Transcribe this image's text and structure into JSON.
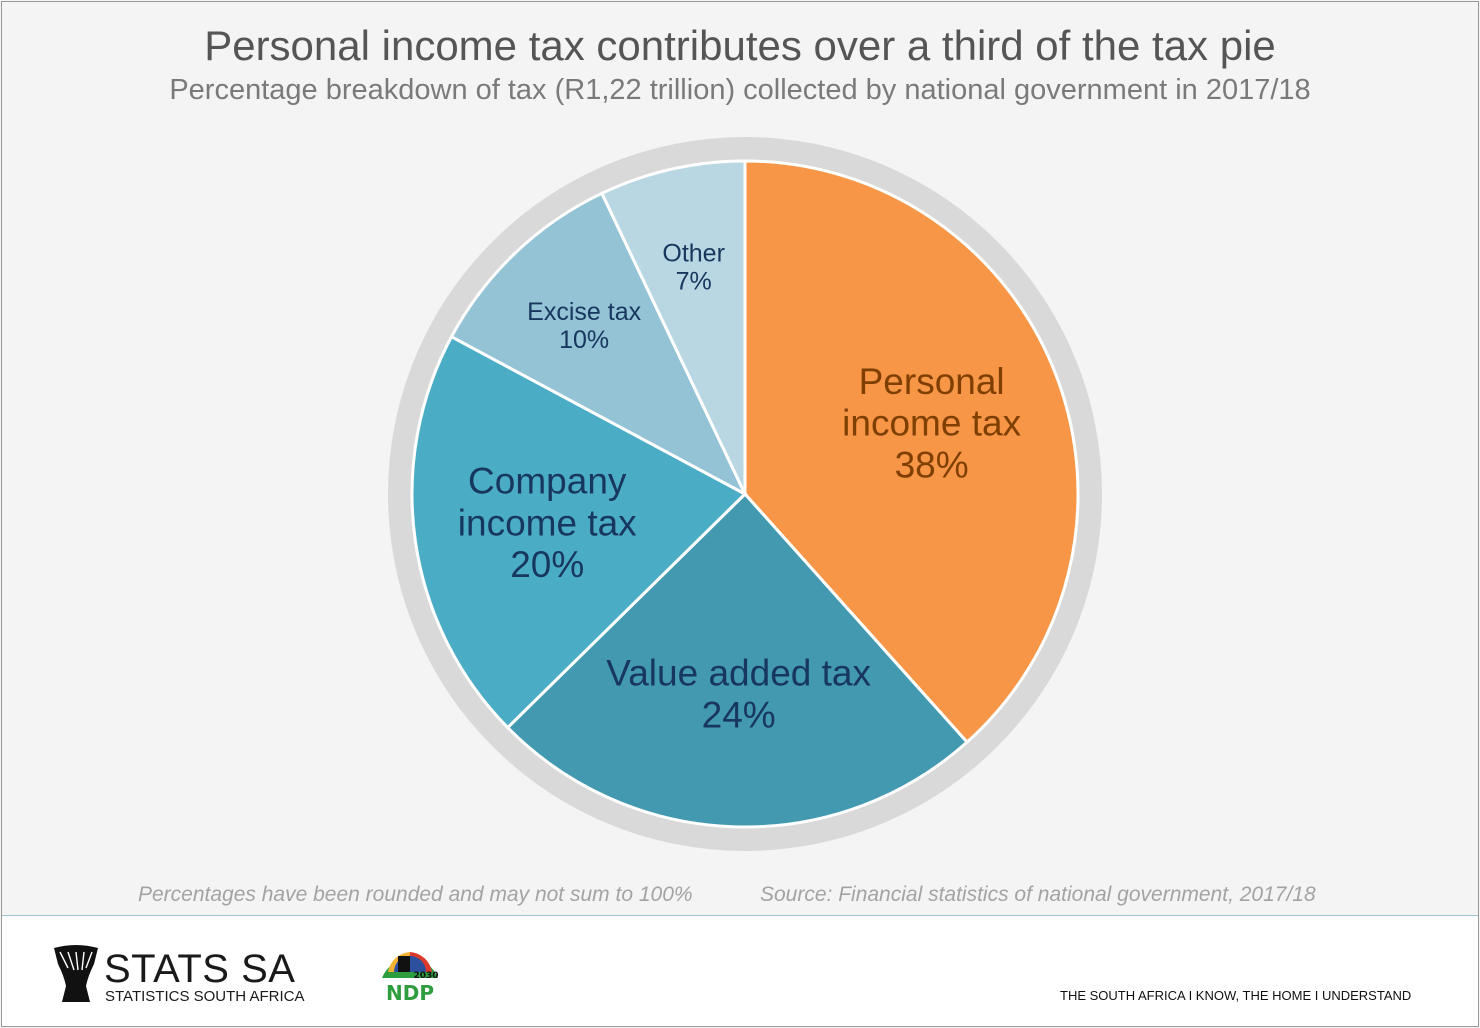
{
  "title": "Personal income tax contributes over a third of the tax pie",
  "subtitle": "Percentage breakdown of tax (R1,22 trillion) collected by national government in 2017/18",
  "notes": {
    "rounding": "Percentages have been rounded and may not sum to 100%",
    "source": "Source: Financial statistics of national government, 2017/18"
  },
  "footer": {
    "brand": "STATS SA",
    "brand_sub": "STATISTICS SOUTH AFRICA",
    "ndp_year": "2030",
    "ndp_label": "NDP",
    "tagline": "THE SOUTH AFRICA I KNOW, THE HOME I UNDERSTAND"
  },
  "colors": {
    "personal": "#f79646",
    "vat": "#4399b0",
    "company": "#4bacc6",
    "excise": "#93c3d5",
    "other": "#b9d7e3",
    "ring": "#d9d9d9",
    "orange_text": "#7f3f00",
    "blue_text": "#17375e"
  },
  "chart_data": {
    "type": "pie",
    "title": "Personal income tax contributes over a third of the tax pie",
    "slices": [
      {
        "lines": [
          "Personal",
          "income tax",
          "38%"
        ],
        "value": 38,
        "color": "#f79646",
        "label_color": "#7f3f00",
        "size": "large"
      },
      {
        "lines": [
          "Value added tax",
          "24%"
        ],
        "value": 24,
        "color": "#4399b0",
        "label_color": "#17375e",
        "size": "large"
      },
      {
        "lines": [
          "Company",
          "income tax",
          "20%"
        ],
        "value": 20,
        "color": "#4bacc6",
        "label_color": "#17375e",
        "size": "large"
      },
      {
        "lines": [
          "Excise tax",
          "10%"
        ],
        "value": 10,
        "color": "#93c3d5",
        "label_color": "#17375e",
        "size": "small"
      },
      {
        "lines": [
          "Other",
          "7%"
        ],
        "value": 7,
        "color": "#b9d7e3",
        "label_color": "#17375e",
        "size": "small"
      }
    ]
  }
}
